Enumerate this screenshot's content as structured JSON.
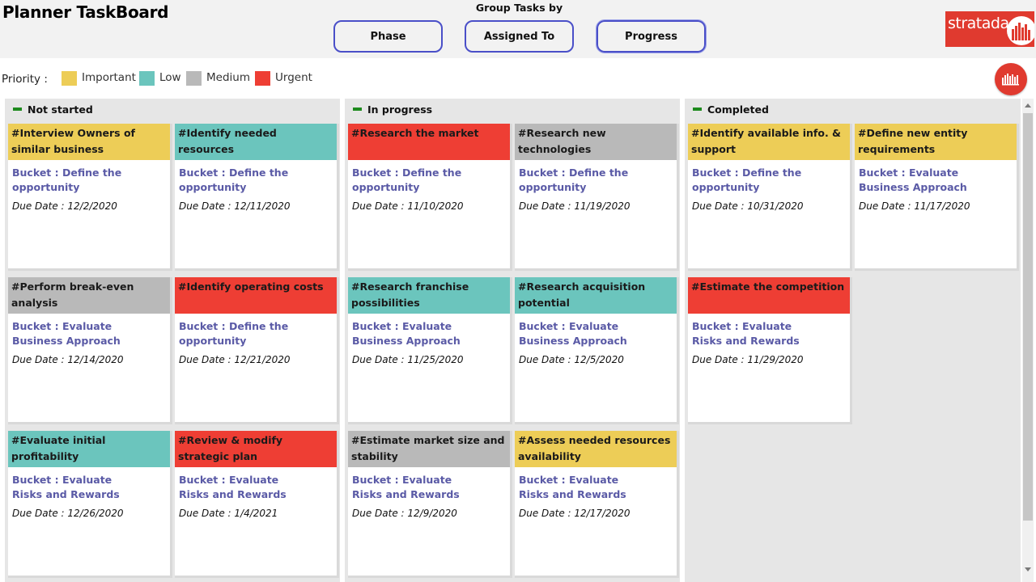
{
  "app": {
    "title": "Planner TaskBoard"
  },
  "group_by": {
    "label": "Group Tasks by",
    "buttons": [
      {
        "label": "Phase"
      },
      {
        "label": "Assigned To"
      },
      {
        "label": "Progress",
        "selected": true
      }
    ]
  },
  "logo": {
    "text": "stratada"
  },
  "legend": {
    "label": "Priority :",
    "items": [
      {
        "label": "Important",
        "color": "#edcd57"
      },
      {
        "label": "Low",
        "color": "#6bc5bd"
      },
      {
        "label": "Medium",
        "color": "#b9b9b9"
      },
      {
        "label": "Urgent",
        "color": "#ee3e34"
      }
    ]
  },
  "columns": [
    {
      "title": "Not started",
      "cards": [
        {
          "title": "#Interview Owners of similar business",
          "priority": "Important",
          "color": "#edcd57",
          "bucket": "Bucket : Define the opportunity",
          "due": "Due Date : 12/2/2020"
        },
        {
          "title": "#Identify needed resources",
          "priority": "Low",
          "color": "#6bc5bd",
          "bucket": "Bucket : Define the opportunity",
          "due": "Due Date : 12/11/2020"
        },
        {
          "title": "#Perform break-even analysis",
          "priority": "Medium",
          "color": "#b9b9b9",
          "bucket": "Bucket : Evaluate Business Approach",
          "due": "Due Date : 12/14/2020"
        },
        {
          "title": "#Identify operating costs",
          "priority": "Urgent",
          "color": "#ee3e34",
          "bucket": "Bucket : Define the opportunity",
          "due": "Due Date : 12/21/2020"
        },
        {
          "title": "#Evaluate initial profitability",
          "priority": "Low",
          "color": "#6bc5bd",
          "bucket": "Bucket : Evaluate Risks and Rewards",
          "due": "Due Date : 12/26/2020"
        },
        {
          "title": "#Review & modify strategic plan",
          "priority": "Urgent",
          "color": "#ee3e34",
          "bucket": "Bucket : Evaluate Risks and Rewards",
          "due": "Due Date : 1/4/2021"
        }
      ]
    },
    {
      "title": "In progress",
      "cards": [
        {
          "title": "#Research the market",
          "priority": "Urgent",
          "color": "#ee3e34",
          "bucket": "Bucket : Define the opportunity",
          "due": "Due Date : 11/10/2020"
        },
        {
          "title": "#Research new technologies",
          "priority": "Medium",
          "color": "#b9b9b9",
          "bucket": "Bucket : Define the opportunity",
          "due": "Due Date : 11/19/2020"
        },
        {
          "title": "#Research franchise possibilities",
          "priority": "Low",
          "color": "#6bc5bd",
          "bucket": "Bucket : Evaluate Business Approach",
          "due": "Due Date : 11/25/2020"
        },
        {
          "title": "#Research acquisition potential",
          "priority": "Low",
          "color": "#6bc5bd",
          "bucket": "Bucket : Evaluate Business Approach",
          "due": "Due Date : 12/5/2020"
        },
        {
          "title": "#Estimate market size and stability",
          "priority": "Medium",
          "color": "#b9b9b9",
          "bucket": "Bucket : Evaluate Risks and Rewards",
          "due": "Due Date : 12/9/2020"
        },
        {
          "title": "#Assess needed resources availability",
          "priority": "Important",
          "color": "#edcd57",
          "bucket": "Bucket : Evaluate Risks and Rewards",
          "due": "Due Date : 12/17/2020"
        }
      ]
    },
    {
      "title": "Completed",
      "cards": [
        {
          "title": "#Identify available info. & support",
          "priority": "Important",
          "color": "#edcd57",
          "bucket": "Bucket : Define the opportunity",
          "due": "Due Date : 10/31/2020"
        },
        {
          "title": "#Define new entity requirements",
          "priority": "Important",
          "color": "#edcd57",
          "bucket": "Bucket : Evaluate Business Approach",
          "due": "Due Date : 11/17/2020"
        },
        {
          "title": "#Estimate the competition",
          "priority": "Urgent",
          "color": "#ee3e34",
          "bucket": "Bucket : Evaluate Risks and Rewards",
          "due": "Due Date : 11/29/2020"
        }
      ]
    }
  ]
}
